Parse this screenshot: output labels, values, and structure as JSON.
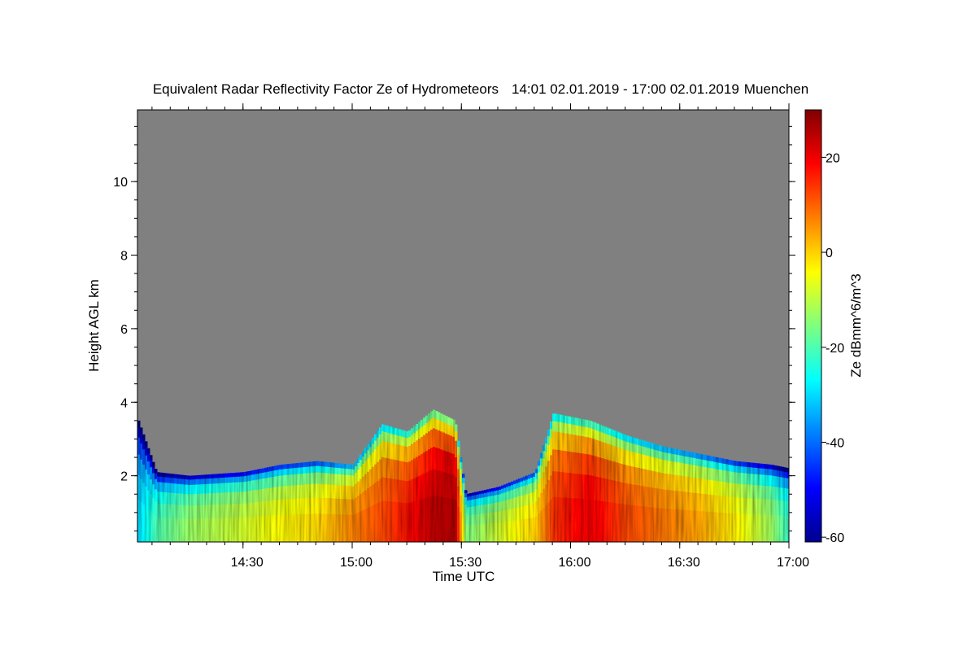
{
  "chart_data": {
    "type": "heatmap",
    "title": "Equivalent Radar Reflectivity Factor Ze of Hydrometeors",
    "time_range": "14:01 02.01.2019 - 17:00 02.01.2019",
    "location": "Muenchen",
    "xlabel": "Time UTC",
    "ylabel": "Height AGL km",
    "colorbar_label": "Ze dBmm^6/m^3",
    "x_start": "14:01",
    "x_end": "17:00",
    "xlim": [
      "14:01",
      "17:00"
    ],
    "ylim": [
      0.2,
      11.95
    ],
    "x_ticks": [
      "14:30",
      "15:00",
      "15:30",
      "16:00",
      "16:30",
      "17:00"
    ],
    "y_ticks": [
      "2",
      "4",
      "6",
      "8",
      "10"
    ],
    "colorbar_ticks": [
      "20",
      "0",
      "-20",
      "-40",
      "-60"
    ],
    "colorbar_range": [
      -61,
      30
    ],
    "colormap": "jet",
    "missing_color": "#808080",
    "echo_top_km": [
      {
        "t": "14:01",
        "top": 3.5,
        "dbz": -32
      },
      {
        "t": "14:06",
        "top": 2.1,
        "dbz": -22
      },
      {
        "t": "14:15",
        "top": 2.0,
        "dbz": -15
      },
      {
        "t": "14:30",
        "top": 2.1,
        "dbz": -10
      },
      {
        "t": "14:40",
        "top": 2.3,
        "dbz": -6
      },
      {
        "t": "14:50",
        "top": 2.4,
        "dbz": -3
      },
      {
        "t": "15:00",
        "top": 2.3,
        "dbz": 5
      },
      {
        "t": "15:08",
        "top": 3.4,
        "dbz": 10
      },
      {
        "t": "15:15",
        "top": 3.2,
        "dbz": 15
      },
      {
        "t": "15:22",
        "top": 3.8,
        "dbz": 22
      },
      {
        "t": "15:28",
        "top": 3.5,
        "dbz": 24
      },
      {
        "t": "15:31",
        "top": 1.5,
        "dbz": -18
      },
      {
        "t": "15:40",
        "top": 1.7,
        "dbz": -10
      },
      {
        "t": "15:50",
        "top": 2.1,
        "dbz": -2
      },
      {
        "t": "15:55",
        "top": 3.7,
        "dbz": 12
      },
      {
        "t": "16:05",
        "top": 3.5,
        "dbz": 18
      },
      {
        "t": "16:15",
        "top": 3.1,
        "dbz": 10
      },
      {
        "t": "16:25",
        "top": 2.8,
        "dbz": 6
      },
      {
        "t": "16:35",
        "top": 2.6,
        "dbz": 2
      },
      {
        "t": "16:45",
        "top": 2.4,
        "dbz": -5
      },
      {
        "t": "16:55",
        "top": 2.3,
        "dbz": -15
      },
      {
        "t": "17:00",
        "top": 2.2,
        "dbz": -25
      }
    ]
  }
}
